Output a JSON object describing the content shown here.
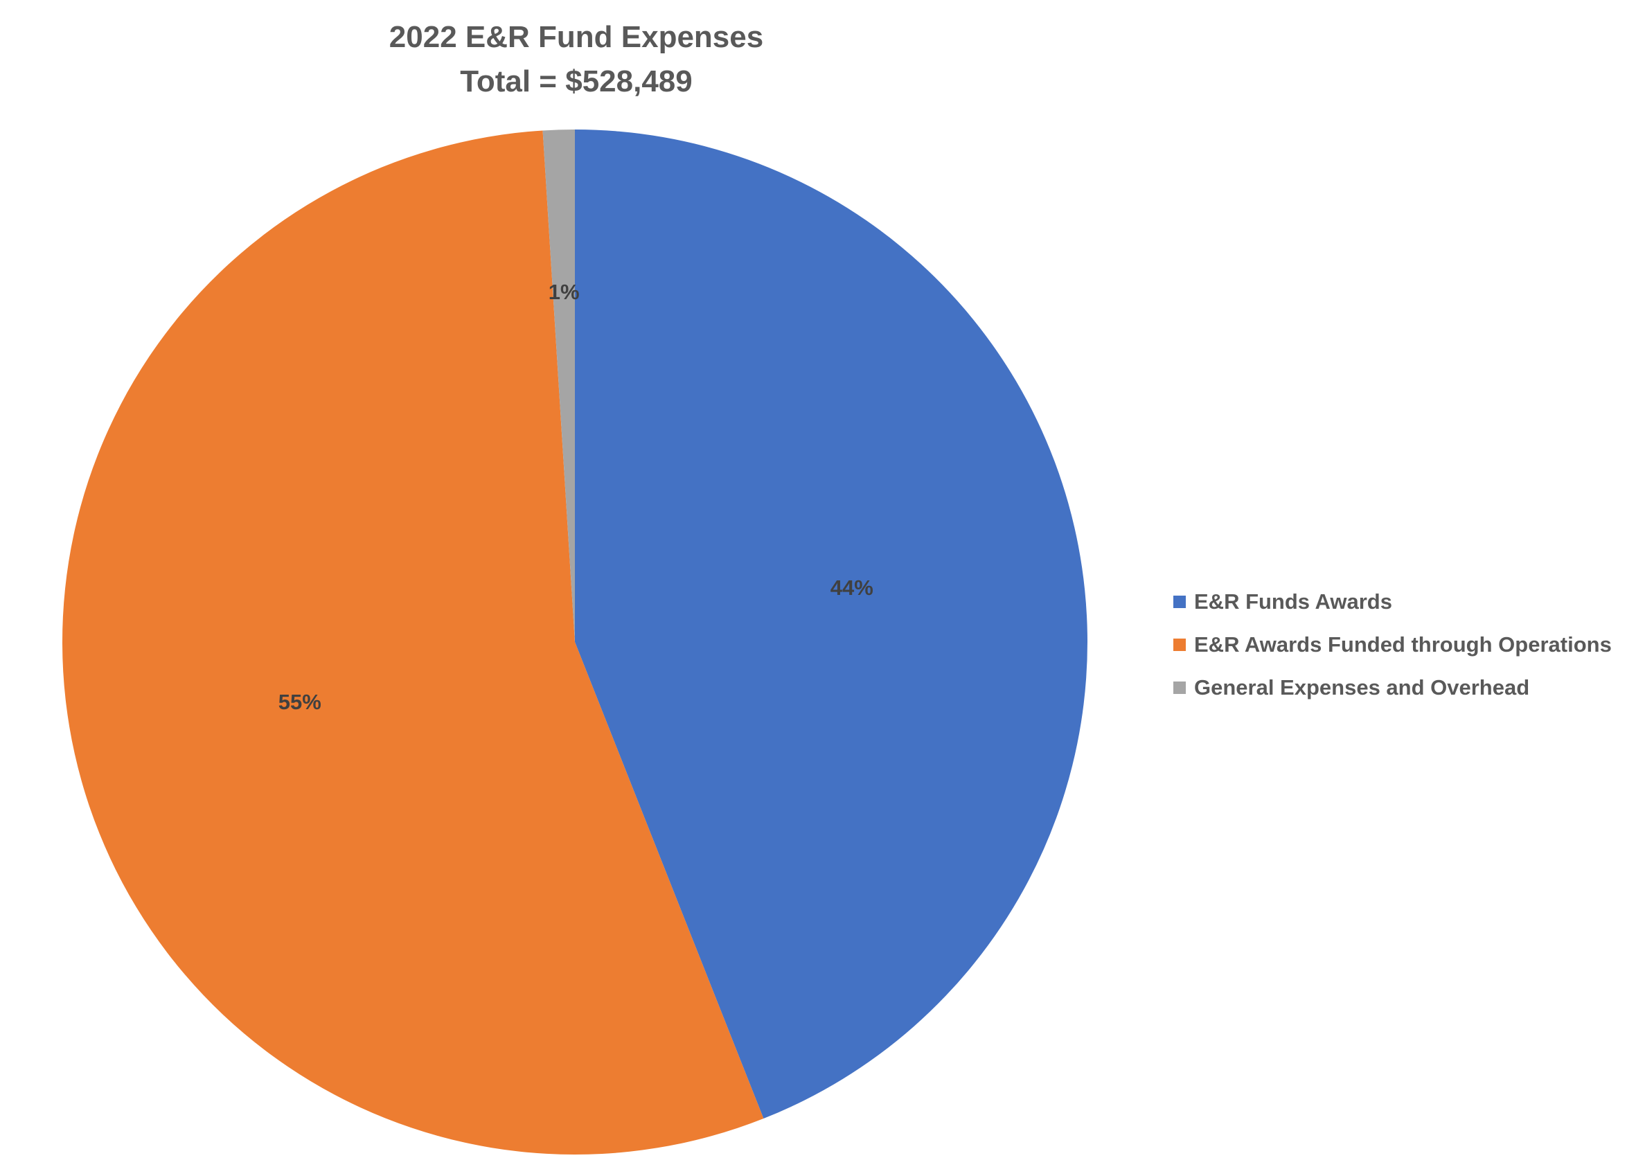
{
  "chart_data": {
    "type": "pie",
    "title": "2022 E&R Fund Expenses",
    "subtitle": "Total = $528,489",
    "categories": [
      "E&R Funds Awards",
      "E&R Awards Funded through Operations",
      "General Expenses and Overhead"
    ],
    "values": [
      44,
      55,
      1
    ],
    "data_labels": [
      "44%",
      "55%",
      "1%"
    ],
    "colors": [
      "#4472C4",
      "#ED7D31",
      "#A5A5A5"
    ],
    "legend_position": "right",
    "start_angle": "12 o'clock",
    "direction": "clockwise"
  }
}
